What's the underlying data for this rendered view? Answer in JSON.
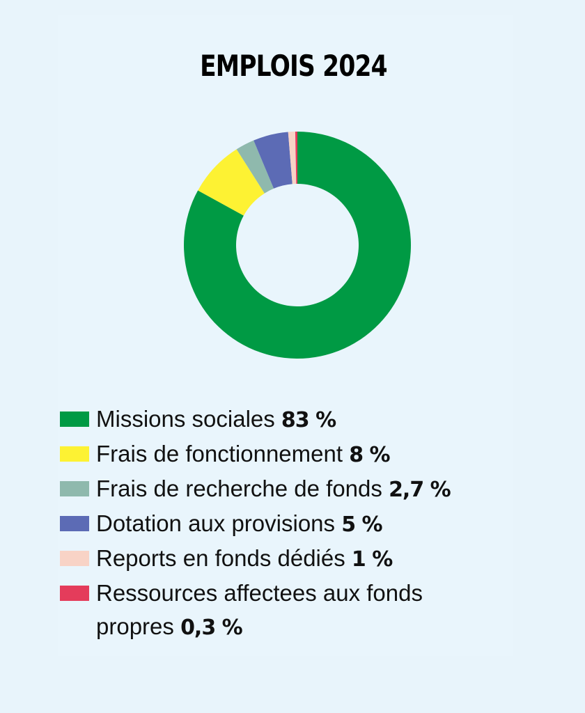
{
  "title": "EMPLOIS 2024",
  "chart_data": {
    "type": "pie",
    "style": "donut",
    "title": "EMPLOIS 2024",
    "categories": [
      "Missions sociales",
      "Frais de fonctionnement",
      "Frais de recherche de fonds",
      "Dotation aux provisions",
      "Reports en fonds dédiés",
      "Ressources affectees aux fonds propres"
    ],
    "values": [
      83,
      8,
      2.7,
      5,
      1,
      0.3
    ],
    "value_labels": [
      "83 %",
      "8 %",
      "2,7 %",
      "5 %",
      "1 %",
      "0,3 %"
    ],
    "colors": [
      "#009a44",
      "#fdf233",
      "#8fb9ad",
      "#5c6bb5",
      "#f8d3c6",
      "#e43c5b"
    ],
    "legend_position": "bottom"
  },
  "legend": [
    {
      "label": "Missions sociales",
      "value": "83 %"
    },
    {
      "label": "Frais de fonctionnement",
      "value": "8 %"
    },
    {
      "label": "Frais de recherche de fonds",
      "value": "2,7 %"
    },
    {
      "label": "Dotation aux provisions",
      "value": "5 %"
    },
    {
      "label": "Reports en fonds dédiés",
      "value": "1 %"
    },
    {
      "label": "Ressources affectees aux fonds propres",
      "value": "0,3 %"
    }
  ]
}
